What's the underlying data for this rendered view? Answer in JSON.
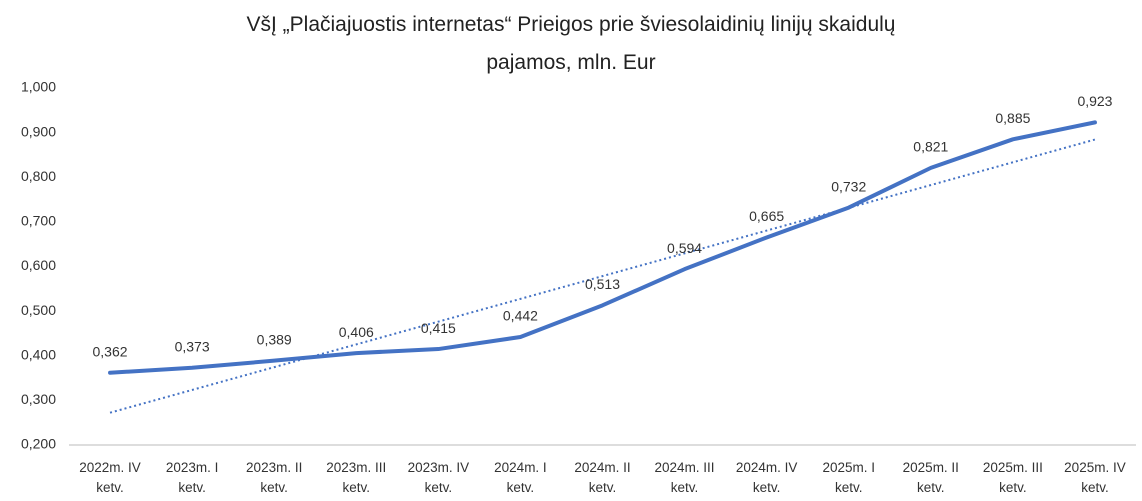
{
  "chart_data": {
    "type": "line",
    "title": "VšĮ „Plačiajuostis internetas“  Prieigos prie šviesolaidinių linijų  skaidulų pajamos, mln. Eur",
    "categories": [
      "2022m. IV ketv.",
      "2023m. I ketv.",
      "2023m. II ketv.",
      "2023m. III ketv.",
      "2023m. IV ketv.",
      "2024m. I ketv.",
      "2024m. II ketv.",
      "2024m. III ketv.",
      "2024m. IV ketv.",
      "2025m. I ketv.",
      "2025m. II ketv.",
      "2025m. III ketv.",
      "2025m. IV ketv."
    ],
    "values": [
      0.362,
      0.373,
      0.389,
      0.406,
      0.415,
      0.442,
      0.513,
      0.594,
      0.665,
      0.732,
      0.821,
      0.885,
      0.923
    ],
    "value_labels": [
      "0,362",
      "0,373",
      "0,389",
      "0,406",
      "0,415",
      "0,442",
      "0,513",
      "0,594",
      "0,665",
      "0,732",
      "0,821",
      "0,885",
      "0,923"
    ],
    "color": "#4472c4",
    "trendline": "linear",
    "ylim": [
      0.2,
      1.0
    ],
    "yticks": [
      {
        "value": 0.2,
        "label": "0,200"
      },
      {
        "value": 0.3,
        "label": "0,300"
      },
      {
        "value": 0.4,
        "label": "0,400"
      },
      {
        "value": 0.5,
        "label": "0,500"
      },
      {
        "value": 0.6,
        "label": "0,600"
      },
      {
        "value": 0.7,
        "label": "0,700"
      },
      {
        "value": 0.8,
        "label": "0,800"
      },
      {
        "value": 0.9,
        "label": "0,900"
      },
      {
        "value": 1.0,
        "label": "1,000"
      }
    ],
    "grid": false
  }
}
